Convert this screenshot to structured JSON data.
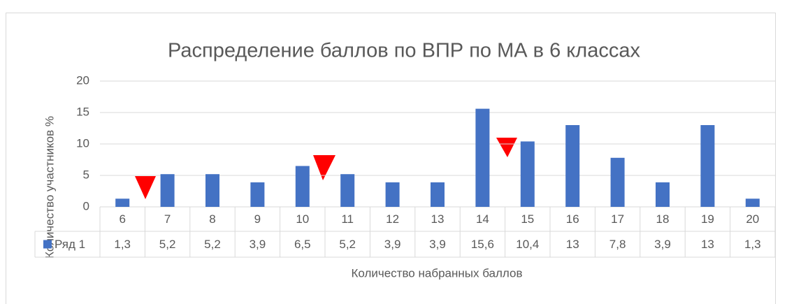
{
  "chart_data": {
    "type": "bar",
    "title": "Распределение баллов по ВПР по МА в 6 классах",
    "x_label": "Количество набранных баллов",
    "y_label": "Количество участников %",
    "categories": [
      "6",
      "7",
      "8",
      "9",
      "10",
      "11",
      "12",
      "13",
      "14",
      "15",
      "16",
      "17",
      "18",
      "19",
      "20"
    ],
    "series": [
      {
        "name": "Ряд 1",
        "color": "#4472c4",
        "values": [
          1.3,
          5.2,
          5.2,
          3.9,
          6.5,
          5.2,
          3.9,
          3.9,
          15.6,
          10.4,
          13,
          7.8,
          3.9,
          13,
          1.3
        ],
        "value_labels": [
          "1,3",
          "5,2",
          "5,2",
          "3,9",
          "6,5",
          "5,2",
          "3,9",
          "3,9",
          "15,6",
          "10,4",
          "13",
          "7,8",
          "3,9",
          "13",
          "1,3"
        ]
      }
    ],
    "ylim": [
      0,
      20
    ],
    "yticks": [
      0,
      5,
      10,
      15,
      20
    ],
    "grid": true
  }
}
